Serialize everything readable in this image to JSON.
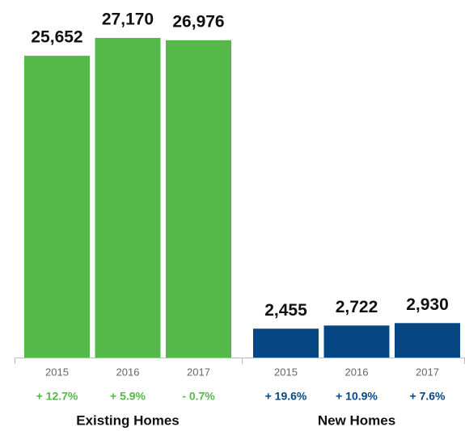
{
  "chart_data": [
    {
      "type": "bar",
      "title": "Existing Homes",
      "categories": [
        "2015",
        "2016",
        "2017"
      ],
      "values": [
        25652,
        27170,
        26976
      ],
      "value_labels": [
        "25,652",
        "27,170",
        "26,976"
      ],
      "changes": [
        "+ 12.7%",
        "+ 5.9%",
        "- 0.7%"
      ],
      "color": "#55b94a"
    },
    {
      "type": "bar",
      "title": "New Homes",
      "categories": [
        "2015",
        "2016",
        "2017"
      ],
      "values": [
        2455,
        2722,
        2930
      ],
      "value_labels": [
        "2,455",
        "2,722",
        "2,930"
      ],
      "changes": [
        "+ 19.6%",
        "+ 10.9%",
        "+ 7.6%"
      ],
      "color": "#064783"
    }
  ]
}
